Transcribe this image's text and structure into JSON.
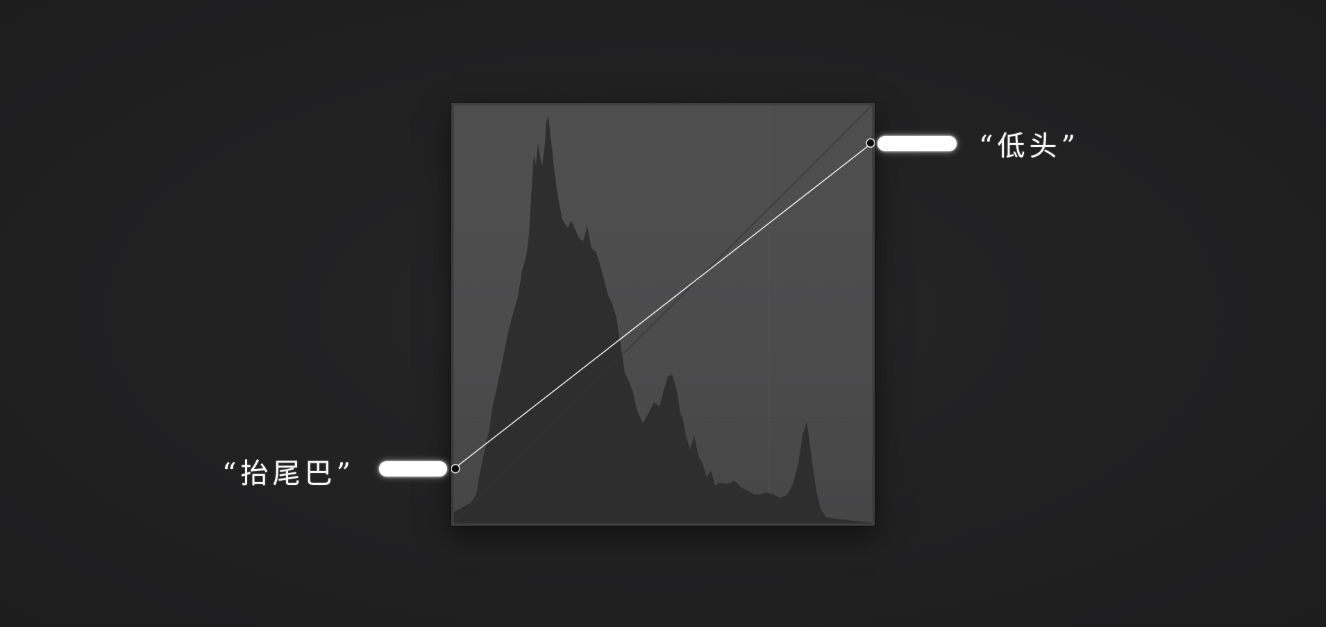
{
  "annotations": {
    "tail_label": "“抬尾巴”",
    "head_label": "“低头”"
  },
  "colors": {
    "background": "#202021",
    "panel_fill": "#4a4a4b",
    "histogram_fill": "#2e2e2f",
    "curve_line": "#e6e6e6",
    "baseline": "#2f2f30",
    "control_point": "#0c0c0c",
    "pill": "#ffffff"
  },
  "curve": {
    "points": [
      {
        "input": 0,
        "output": 0.13
      },
      {
        "input": 1,
        "output": 0.91
      }
    ]
  }
}
